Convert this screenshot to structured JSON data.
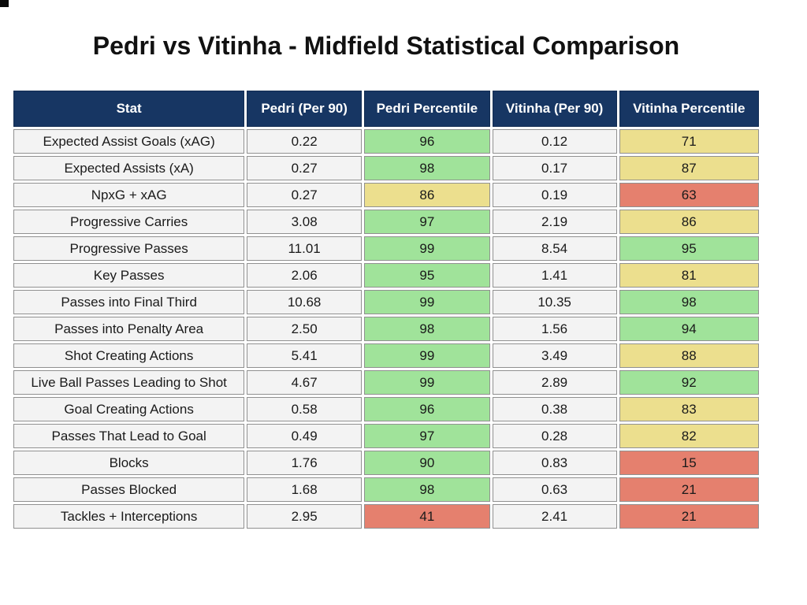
{
  "title": "Pedri vs Vitinha - Midfield Statistical Comparison",
  "colors": {
    "header_bg": "#173663",
    "header_border": "#122c52",
    "header_text": "#ffffff",
    "row_bg": "#f3f3f3",
    "cell_border": "#909090",
    "cell_text": "#1a1a1a",
    "green": "#a0e39a",
    "yellow": "#ecdf8e",
    "red": "#e5806e"
  },
  "chart_data": {
    "type": "table",
    "title": "Pedri vs Vitinha - Midfield Statistical Comparison",
    "columns": [
      "Stat",
      "Pedri (Per 90)",
      "Pedri Percentile",
      "Vitinha (Per 90)",
      "Vitinha Percentile"
    ],
    "percentile_color_legend": {
      "green": "high percentile",
      "yellow": "mid percentile",
      "red": "low percentile"
    },
    "rows": [
      {
        "stat": "Expected Assist Goals (xAG)",
        "pedri_per90": "0.22",
        "pedri_pct": "96",
        "pedri_pct_level": "green",
        "vitinha_per90": "0.12",
        "vitinha_pct": "71",
        "vitinha_pct_level": "yellow"
      },
      {
        "stat": "Expected Assists (xA)",
        "pedri_per90": "0.27",
        "pedri_pct": "98",
        "pedri_pct_level": "green",
        "vitinha_per90": "0.17",
        "vitinha_pct": "87",
        "vitinha_pct_level": "yellow"
      },
      {
        "stat": "NpxG + xAG",
        "pedri_per90": "0.27",
        "pedri_pct": "86",
        "pedri_pct_level": "yellow",
        "vitinha_per90": "0.19",
        "vitinha_pct": "63",
        "vitinha_pct_level": "red"
      },
      {
        "stat": "Progressive Carries",
        "pedri_per90": "3.08",
        "pedri_pct": "97",
        "pedri_pct_level": "green",
        "vitinha_per90": "2.19",
        "vitinha_pct": "86",
        "vitinha_pct_level": "yellow"
      },
      {
        "stat": "Progressive Passes",
        "pedri_per90": "11.01",
        "pedri_pct": "99",
        "pedri_pct_level": "green",
        "vitinha_per90": "8.54",
        "vitinha_pct": "95",
        "vitinha_pct_level": "green"
      },
      {
        "stat": "Key Passes",
        "pedri_per90": "2.06",
        "pedri_pct": "95",
        "pedri_pct_level": "green",
        "vitinha_per90": "1.41",
        "vitinha_pct": "81",
        "vitinha_pct_level": "yellow"
      },
      {
        "stat": "Passes into Final Third",
        "pedri_per90": "10.68",
        "pedri_pct": "99",
        "pedri_pct_level": "green",
        "vitinha_per90": "10.35",
        "vitinha_pct": "98",
        "vitinha_pct_level": "green"
      },
      {
        "stat": "Passes into Penalty Area",
        "pedri_per90": "2.50",
        "pedri_pct": "98",
        "pedri_pct_level": "green",
        "vitinha_per90": "1.56",
        "vitinha_pct": "94",
        "vitinha_pct_level": "green"
      },
      {
        "stat": "Shot Creating Actions",
        "pedri_per90": "5.41",
        "pedri_pct": "99",
        "pedri_pct_level": "green",
        "vitinha_per90": "3.49",
        "vitinha_pct": "88",
        "vitinha_pct_level": "yellow"
      },
      {
        "stat": "Live Ball Passes Leading to Shot",
        "pedri_per90": "4.67",
        "pedri_pct": "99",
        "pedri_pct_level": "green",
        "vitinha_per90": "2.89",
        "vitinha_pct": "92",
        "vitinha_pct_level": "green"
      },
      {
        "stat": "Goal Creating Actions",
        "pedri_per90": "0.58",
        "pedri_pct": "96",
        "pedri_pct_level": "green",
        "vitinha_per90": "0.38",
        "vitinha_pct": "83",
        "vitinha_pct_level": "yellow"
      },
      {
        "stat": "Passes That Lead to Goal",
        "pedri_per90": "0.49",
        "pedri_pct": "97",
        "pedri_pct_level": "green",
        "vitinha_per90": "0.28",
        "vitinha_pct": "82",
        "vitinha_pct_level": "yellow"
      },
      {
        "stat": "Blocks",
        "pedri_per90": "1.76",
        "pedri_pct": "90",
        "pedri_pct_level": "green",
        "vitinha_per90": "0.83",
        "vitinha_pct": "15",
        "vitinha_pct_level": "red"
      },
      {
        "stat": "Passes Blocked",
        "pedri_per90": "1.68",
        "pedri_pct": "98",
        "pedri_pct_level": "green",
        "vitinha_per90": "0.63",
        "vitinha_pct": "21",
        "vitinha_pct_level": "red"
      },
      {
        "stat": "Tackles + Interceptions",
        "pedri_per90": "2.95",
        "pedri_pct": "41",
        "pedri_pct_level": "red",
        "vitinha_per90": "2.41",
        "vitinha_pct": "21",
        "vitinha_pct_level": "red"
      }
    ]
  }
}
